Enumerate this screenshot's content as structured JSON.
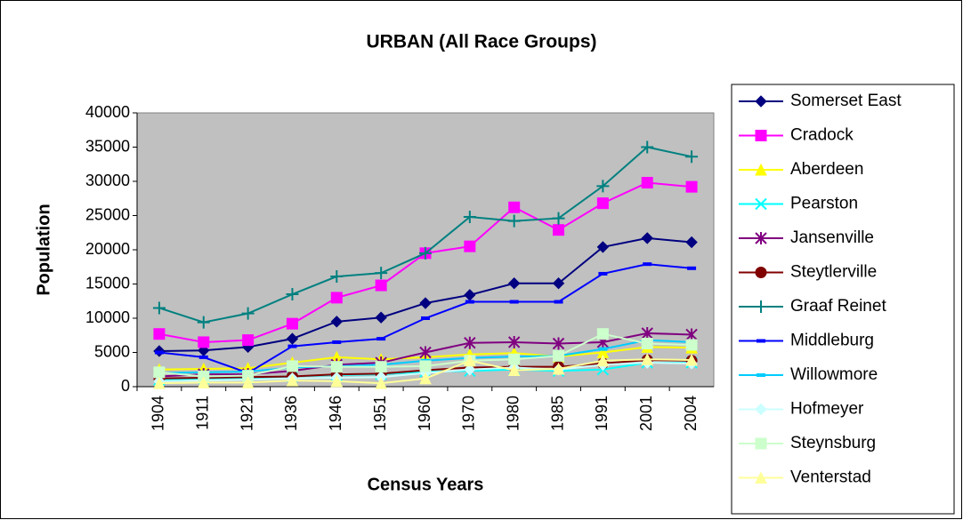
{
  "chart_data": {
    "type": "line",
    "title": "URBAN (All Race Groups)",
    "x_label": "Census Years",
    "y_label": "Population",
    "categories": [
      "1904",
      "1911",
      "1921",
      "1936",
      "1946",
      "1951",
      "1960",
      "1970",
      "1980",
      "1985",
      "1991",
      "2001",
      "2004"
    ],
    "ylim": [
      0,
      40000
    ],
    "yticks": [
      0,
      5000,
      10000,
      15000,
      20000,
      25000,
      30000,
      35000,
      40000
    ],
    "plot_background": "#c0c0c0",
    "legend": "right",
    "series": [
      {
        "name": "Somerset East",
        "color": "#000080",
        "marker": "diamond",
        "values": [
          5200,
          5300,
          5800,
          7000,
          9500,
          10100,
          12200,
          13400,
          15100,
          15100,
          20400,
          21700,
          21100
        ]
      },
      {
        "name": "Cradock",
        "color": "#ff00ff",
        "marker": "square",
        "values": [
          7700,
          6500,
          6800,
          9200,
          13000,
          14800,
          19500,
          20500,
          26200,
          22900,
          26800,
          29800,
          29200
        ]
      },
      {
        "name": "Aberdeen",
        "color": "#ffff00",
        "marker": "triangle",
        "values": [
          2500,
          2600,
          2700,
          3500,
          4300,
          4000,
          4300,
          4700,
          4900,
          4400,
          5000,
          5800,
          5700
        ]
      },
      {
        "name": "Pearston",
        "color": "#00ffff",
        "marker": "x",
        "values": [
          1000,
          1200,
          1300,
          1500,
          1700,
          1800,
          2200,
          2300,
          2500,
          2300,
          2500,
          3500,
          3500
        ]
      },
      {
        "name": "Jansenville",
        "color": "#800080",
        "marker": "star",
        "values": [
          1500,
          1800,
          1800,
          2300,
          3200,
          3500,
          5000,
          6400,
          6500,
          6300,
          6500,
          7800,
          7600
        ]
      },
      {
        "name": "Steytlerville",
        "color": "#800000",
        "marker": "circle",
        "values": [
          1200,
          1300,
          1400,
          1500,
          1800,
          1900,
          2400,
          2800,
          2900,
          2900,
          3400,
          3900,
          3800
        ]
      },
      {
        "name": "Graaf Reinet",
        "color": "#008080",
        "marker": "plus",
        "values": [
          11500,
          9400,
          10700,
          13500,
          16100,
          16600,
          19500,
          24800,
          24200,
          24600,
          29300,
          35000,
          33600
        ]
      },
      {
        "name": "Middleburg",
        "color": "#0000ff",
        "marker": "dash",
        "values": [
          5000,
          4300,
          2000,
          5900,
          6500,
          7000,
          10000,
          12400,
          12400,
          12400,
          16500,
          17900,
          17300
        ]
      },
      {
        "name": "Willowmore",
        "color": "#00ccff",
        "marker": "dash",
        "values": [
          2000,
          2100,
          2200,
          2800,
          3000,
          3200,
          3800,
          4200,
          4400,
          4500,
          5500,
          6800,
          6500
        ]
      },
      {
        "name": "Hofmeyer",
        "color": "#ccffff",
        "marker": "diamond",
        "values": [
          800,
          900,
          1000,
          1200,
          1300,
          1400,
          2000,
          2500,
          2800,
          2500,
          3200,
          3500,
          3400
        ]
      },
      {
        "name": "Steynsburg",
        "color": "#ccffcc",
        "marker": "square",
        "values": [
          2100,
          1500,
          1600,
          3000,
          2900,
          2900,
          3000,
          3800,
          4000,
          4500,
          7700,
          6300,
          6100
        ]
      },
      {
        "name": "Venterstad",
        "color": "#ffff99",
        "marker": "triangle",
        "values": [
          500,
          600,
          600,
          900,
          800,
          500,
          1200,
          3800,
          2400,
          2600,
          3800,
          4000,
          3900
        ]
      }
    ]
  }
}
